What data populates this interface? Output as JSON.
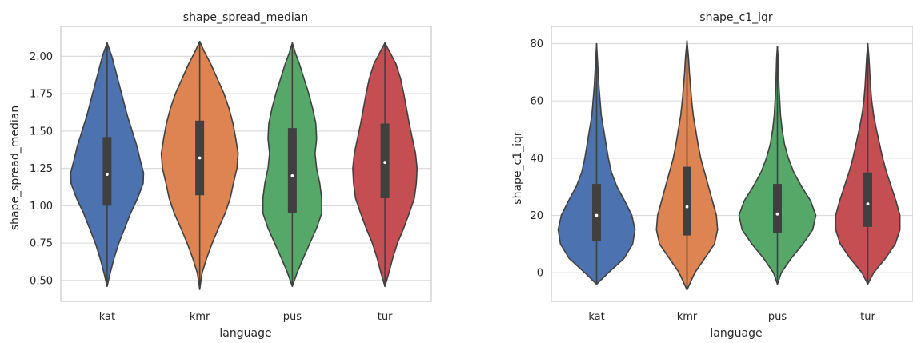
{
  "figure": {
    "background": "#ffffff",
    "axes_face": "#ffffff",
    "grid_color": "#dcdcdc",
    "spine_color": "#cccccc",
    "outline_color": "#404040",
    "palette": [
      "#4c72b0",
      "#dd8452",
      "#55a868",
      "#c44e52"
    ]
  },
  "chart_data": [
    {
      "type": "violin",
      "title": "shape_spread_median",
      "xlabel": "language",
      "ylabel": "shape_spread_median",
      "categories": [
        "kat",
        "kmr",
        "pus",
        "tur"
      ],
      "ylim": [
        0.36,
        2.2
      ],
      "yticks": [
        0.5,
        0.75,
        1.0,
        1.25,
        1.5,
        1.75,
        2.0
      ],
      "ytick_labels": [
        "0.50",
        "0.75",
        "1.00",
        "1.25",
        "1.50",
        "1.75",
        "2.00"
      ],
      "grid": true,
      "violins": [
        {
          "category": "kat",
          "color": "#4c72b0",
          "min": 0.46,
          "q1": 1.0,
          "median": 1.21,
          "q3": 1.46,
          "max": 2.09,
          "density": [
            [
              0.46,
              0.0
            ],
            [
              0.55,
              0.08
            ],
            [
              0.65,
              0.18
            ],
            [
              0.75,
              0.3
            ],
            [
              0.85,
              0.45
            ],
            [
              0.95,
              0.6
            ],
            [
              1.05,
              0.78
            ],
            [
              1.15,
              0.92
            ],
            [
              1.22,
              0.93
            ],
            [
              1.3,
              0.85
            ],
            [
              1.4,
              0.76
            ],
            [
              1.5,
              0.64
            ],
            [
              1.6,
              0.52
            ],
            [
              1.7,
              0.42
            ],
            [
              1.8,
              0.32
            ],
            [
              1.9,
              0.22
            ],
            [
              2.0,
              0.12
            ],
            [
              2.09,
              0.0
            ]
          ]
        },
        {
          "category": "kmr",
          "color": "#dd8452",
          "min": 0.44,
          "q1": 1.07,
          "median": 1.32,
          "q3": 1.57,
          "max": 2.1,
          "density": [
            [
              0.44,
              0.0
            ],
            [
              0.55,
              0.06
            ],
            [
              0.65,
              0.18
            ],
            [
              0.75,
              0.32
            ],
            [
              0.85,
              0.48
            ],
            [
              0.95,
              0.65
            ],
            [
              1.05,
              0.78
            ],
            [
              1.15,
              0.86
            ],
            [
              1.25,
              0.95
            ],
            [
              1.35,
              0.98
            ],
            [
              1.45,
              0.92
            ],
            [
              1.55,
              0.85
            ],
            [
              1.65,
              0.75
            ],
            [
              1.75,
              0.62
            ],
            [
              1.85,
              0.45
            ],
            [
              1.95,
              0.28
            ],
            [
              2.03,
              0.12
            ],
            [
              2.1,
              0.0
            ]
          ]
        },
        {
          "category": "pus",
          "color": "#55a868",
          "min": 0.46,
          "q1": 0.95,
          "median": 1.2,
          "q3": 1.52,
          "max": 2.09,
          "density": [
            [
              0.46,
              0.0
            ],
            [
              0.55,
              0.12
            ],
            [
              0.65,
              0.28
            ],
            [
              0.75,
              0.45
            ],
            [
              0.85,
              0.62
            ],
            [
              0.95,
              0.75
            ],
            [
              1.05,
              0.75
            ],
            [
              1.15,
              0.7
            ],
            [
              1.25,
              0.62
            ],
            [
              1.35,
              0.58
            ],
            [
              1.45,
              0.62
            ],
            [
              1.55,
              0.6
            ],
            [
              1.65,
              0.52
            ],
            [
              1.75,
              0.42
            ],
            [
              1.85,
              0.3
            ],
            [
              1.95,
              0.18
            ],
            [
              2.02,
              0.08
            ],
            [
              2.09,
              0.0
            ]
          ]
        },
        {
          "category": "tur",
          "color": "#c44e52",
          "min": 0.46,
          "q1": 1.05,
          "median": 1.29,
          "q3": 1.55,
          "max": 2.09,
          "density": [
            [
              0.46,
              0.0
            ],
            [
              0.55,
              0.1
            ],
            [
              0.65,
              0.2
            ],
            [
              0.75,
              0.32
            ],
            [
              0.85,
              0.48
            ],
            [
              0.95,
              0.62
            ],
            [
              1.05,
              0.75
            ],
            [
              1.15,
              0.8
            ],
            [
              1.25,
              0.82
            ],
            [
              1.35,
              0.78
            ],
            [
              1.45,
              0.7
            ],
            [
              1.55,
              0.62
            ],
            [
              1.65,
              0.55
            ],
            [
              1.75,
              0.48
            ],
            [
              1.85,
              0.4
            ],
            [
              1.95,
              0.28
            ],
            [
              2.03,
              0.12
            ],
            [
              2.09,
              0.0
            ]
          ]
        }
      ]
    },
    {
      "type": "violin",
      "title": "shape_c1_iqr",
      "xlabel": "language",
      "ylabel": "shape_c1_iqr",
      "categories": [
        "kat",
        "kmr",
        "pus",
        "tur"
      ],
      "ylim": [
        -10,
        86
      ],
      "yticks": [
        0,
        20,
        40,
        60,
        80
      ],
      "ytick_labels": [
        "0",
        "20",
        "40",
        "60",
        "80"
      ],
      "grid": true,
      "violins": [
        {
          "category": "kat",
          "color": "#4c72b0",
          "min": -4,
          "q1": 11,
          "median": 20,
          "q3": 31,
          "max": 80,
          "density": [
            [
              -4,
              0.0
            ],
            [
              0,
              0.3
            ],
            [
              5,
              0.7
            ],
            [
              10,
              0.92
            ],
            [
              15,
              0.98
            ],
            [
              20,
              0.9
            ],
            [
              25,
              0.72
            ],
            [
              30,
              0.52
            ],
            [
              35,
              0.38
            ],
            [
              40,
              0.3
            ],
            [
              45,
              0.24
            ],
            [
              50,
              0.18
            ],
            [
              55,
              0.12
            ],
            [
              60,
              0.09
            ],
            [
              65,
              0.06
            ],
            [
              70,
              0.04
            ],
            [
              75,
              0.02
            ],
            [
              80,
              0.0
            ]
          ]
        },
        {
          "category": "kmr",
          "color": "#dd8452",
          "min": -6,
          "q1": 13,
          "median": 23,
          "q3": 37,
          "max": 81,
          "density": [
            [
              -6,
              0.0
            ],
            [
              0,
              0.2
            ],
            [
              5,
              0.45
            ],
            [
              10,
              0.7
            ],
            [
              15,
              0.78
            ],
            [
              20,
              0.75
            ],
            [
              25,
              0.65
            ],
            [
              30,
              0.55
            ],
            [
              35,
              0.45
            ],
            [
              40,
              0.35
            ],
            [
              45,
              0.28
            ],
            [
              50,
              0.22
            ],
            [
              55,
              0.16
            ],
            [
              60,
              0.12
            ],
            [
              65,
              0.09
            ],
            [
              70,
              0.06
            ],
            [
              75,
              0.04
            ],
            [
              81,
              0.0
            ]
          ]
        },
        {
          "category": "pus",
          "color": "#55a868",
          "min": -4,
          "q1": 14,
          "median": 20.5,
          "q3": 31,
          "max": 79,
          "density": [
            [
              -4,
              0.0
            ],
            [
              0,
              0.1
            ],
            [
              5,
              0.35
            ],
            [
              10,
              0.65
            ],
            [
              15,
              0.9
            ],
            [
              20,
              0.98
            ],
            [
              25,
              0.85
            ],
            [
              30,
              0.62
            ],
            [
              35,
              0.42
            ],
            [
              40,
              0.28
            ],
            [
              45,
              0.18
            ],
            [
              50,
              0.12
            ],
            [
              55,
              0.08
            ],
            [
              60,
              0.06
            ],
            [
              65,
              0.04
            ],
            [
              70,
              0.03
            ],
            [
              75,
              0.02
            ],
            [
              79,
              0.0
            ]
          ]
        },
        {
          "category": "tur",
          "color": "#c44e52",
          "min": -4,
          "q1": 16,
          "median": 24,
          "q3": 35,
          "max": 80,
          "density": [
            [
              -4,
              0.0
            ],
            [
              0,
              0.15
            ],
            [
              5,
              0.45
            ],
            [
              10,
              0.7
            ],
            [
              15,
              0.82
            ],
            [
              20,
              0.82
            ],
            [
              25,
              0.72
            ],
            [
              30,
              0.6
            ],
            [
              35,
              0.48
            ],
            [
              40,
              0.38
            ],
            [
              45,
              0.3
            ],
            [
              50,
              0.22
            ],
            [
              55,
              0.15
            ],
            [
              60,
              0.1
            ],
            [
              65,
              0.07
            ],
            [
              70,
              0.05
            ],
            [
              75,
              0.03
            ],
            [
              80,
              0.0
            ]
          ]
        }
      ]
    }
  ]
}
